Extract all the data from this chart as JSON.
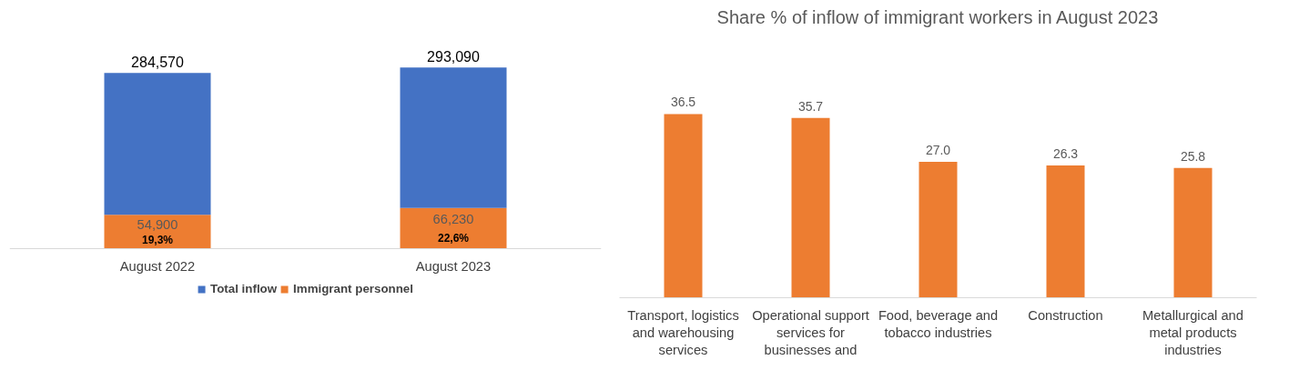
{
  "chart_data": [
    {
      "type": "bar",
      "stacked": true,
      "categories": [
        "August 2022",
        "August 2023"
      ],
      "series": [
        {
          "name": "Immigrant personnel",
          "color": "#ed7d31",
          "values": [
            54900,
            66230
          ],
          "value_labels": [
            "54,900",
            "66,230"
          ]
        },
        {
          "name": "Total inflow",
          "color": "#4472c4",
          "values": [
            229670,
            226860
          ]
        }
      ],
      "totals": [
        "284,570",
        "293,090"
      ],
      "annotations": [
        "19,3%",
        "22,6%"
      ],
      "legend": "bottom",
      "grid": false,
      "tick_labels": "x"
    },
    {
      "type": "bar",
      "title": "Share % of inflow of immigrant workers in August 2023",
      "categories": [
        "Transport, logistics and warehousing services",
        "Operational support services for businesses and",
        "Food, beverage and tobacco industries",
        "Construction",
        "Metallurgical and metal products industries"
      ],
      "series": [
        {
          "color": "#ed7d31",
          "values": [
            36.5,
            35.7,
            27.0,
            26.3,
            25.8
          ],
          "value_labels": [
            "36.5",
            "35.7",
            "27.0",
            "26.3",
            "25.8"
          ]
        }
      ],
      "grid": false,
      "legend": false,
      "tick_labels": "x"
    }
  ]
}
